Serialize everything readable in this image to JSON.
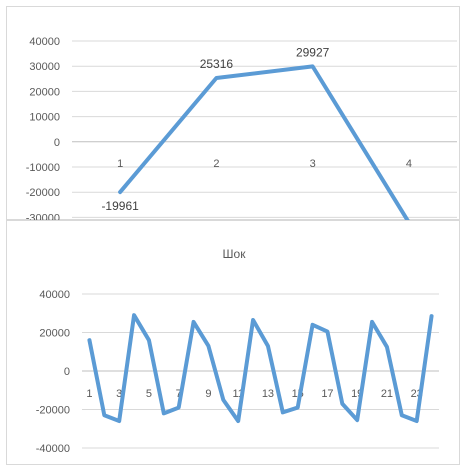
{
  "colors": {
    "series": "#5b9bd5",
    "grid": "#d9d9d9"
  },
  "chart_data": [
    {
      "type": "line",
      "title": "",
      "categories": [
        "1",
        "2",
        "3",
        "4"
      ],
      "series": [
        {
          "values": [
            -19961,
            25316,
            29927,
            -32000
          ]
        }
      ],
      "data_labels": [
        "-19961",
        "25316",
        "29927"
      ],
      "y_ticks": [
        "40000",
        "30000",
        "20000",
        "10000",
        "0",
        "-10000",
        "-20000",
        "-30000"
      ],
      "ylim": [
        -30000,
        40000
      ],
      "grid": true
    },
    {
      "type": "line",
      "title": "Шок",
      "categories": [
        "1",
        "2",
        "3",
        "4",
        "5",
        "6",
        "7",
        "8",
        "9",
        "10",
        "11",
        "12",
        "13",
        "14",
        "15",
        "16",
        "17",
        "18",
        "19",
        "20",
        "21",
        "22",
        "23",
        "24"
      ],
      "x_tick_labels": [
        "1",
        "3",
        "5",
        "7",
        "9",
        "11",
        "13",
        "15",
        "17",
        "19",
        "21",
        "23"
      ],
      "series": [
        {
          "values": [
            16000,
            -23000,
            -26000,
            29000,
            16000,
            -22000,
            -19000,
            25500,
            13000,
            -15000,
            -26000,
            26500,
            13000,
            -21500,
            -19000,
            24000,
            20500,
            -17000,
            -25500,
            25500,
            12500,
            -23000,
            -26000,
            28500
          ]
        }
      ],
      "y_ticks": [
        "40000",
        "20000",
        "0",
        "-20000",
        "-40000"
      ],
      "ylim": [
        -40000,
        40000
      ],
      "grid": true
    }
  ]
}
